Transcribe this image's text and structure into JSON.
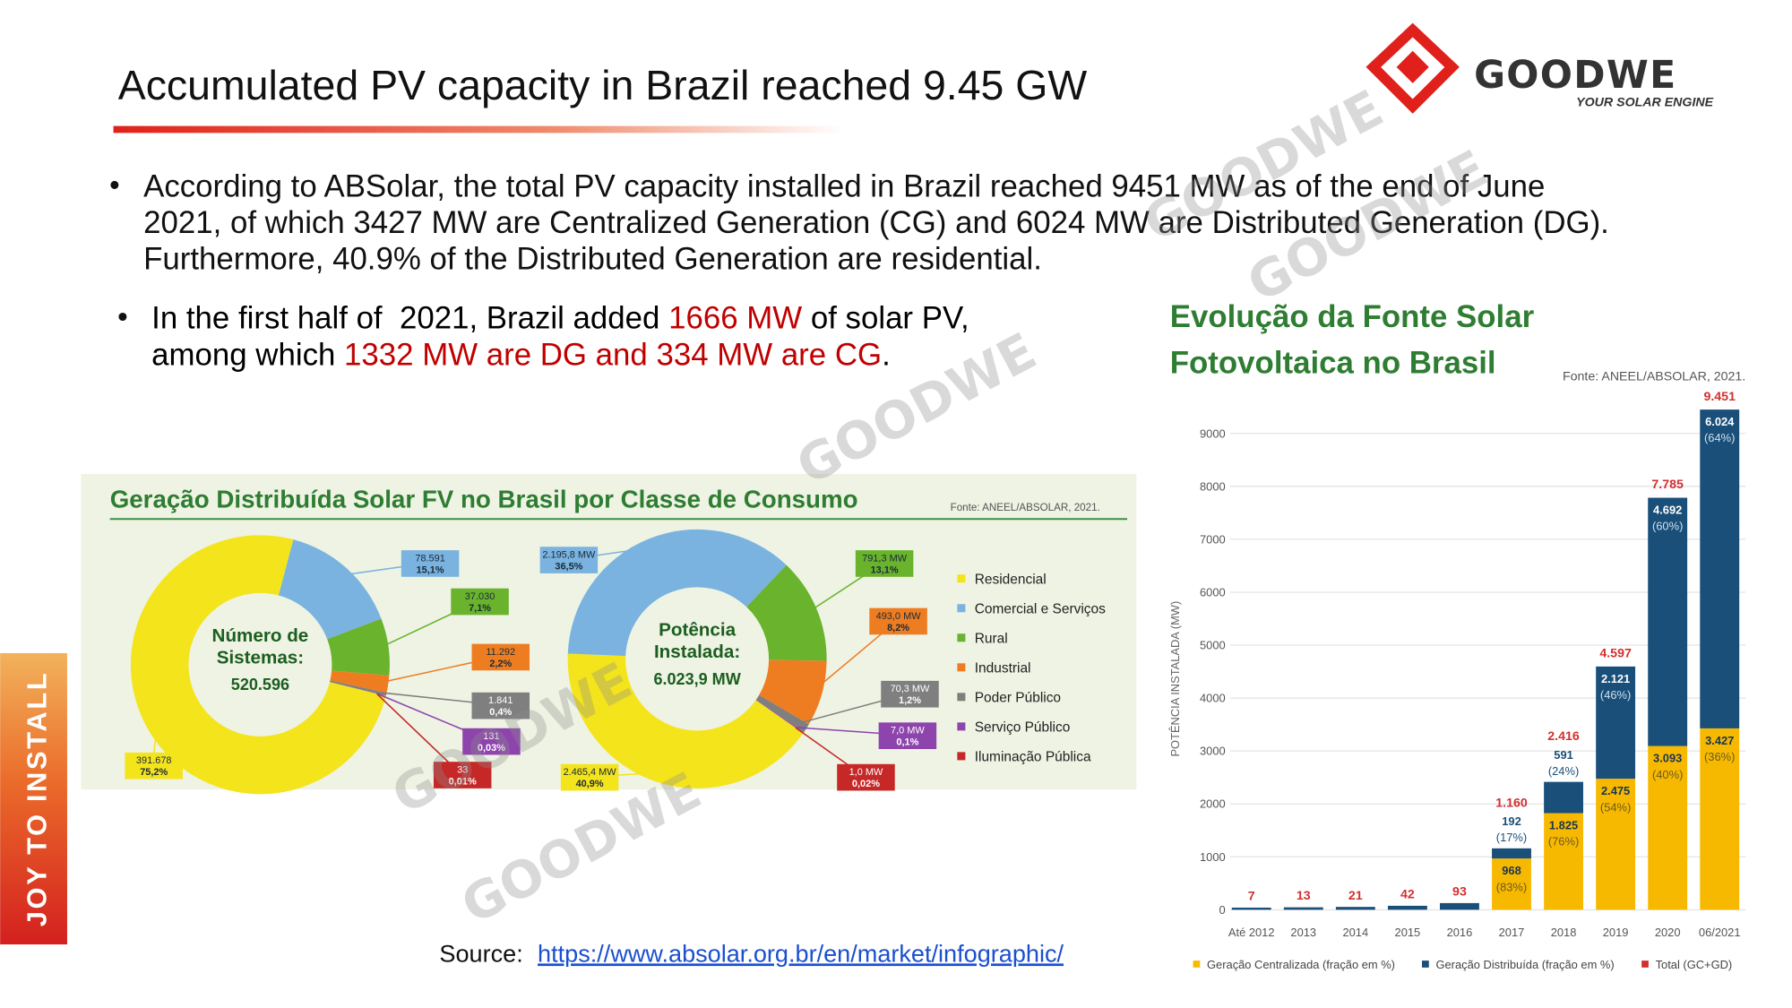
{
  "header": {
    "title": "Accumulated PV capacity in Brazil reached 9.45 GW",
    "logo": "GOODWE",
    "tagline": "YOUR SOLAR ENGINE"
  },
  "bullet_1": {
    "lines": [
      "According to ABSolar, the total PV capacity installed in Brazil reached 9451 MW as of the end of June",
      "2021, of which 3427 MW are Centralized Generation (CG) and 6024 MW are Distributed Generation (DG).",
      "Furthermore, 40.9% of the Distributed Generation are residential."
    ]
  },
  "bullet_2": {
    "lines": [
      [
        {
          "text": "In the first half of  2021, Brazil added ",
          "color": "#000000"
        },
        {
          "text": "1666 MW",
          "color": "#c00000"
        },
        {
          "text": " of solar PV,",
          "color": "#000000"
        }
      ],
      [
        {
          "text": "among which ",
          "color": "#000000"
        },
        {
          "text": "1332 MW are DG and 334 MW are CG",
          "color": "#c00000"
        },
        {
          "text": ".",
          "color": "#000000"
        }
      ]
    ]
  },
  "watermark": "GOODWE",
  "side_label": "JOY TO INSTALL",
  "source": {
    "label": "Source:",
    "link": "https://www.absolar.org.br/en/market/infographic/"
  },
  "chart_data": [
    {
      "type": "donut",
      "title": "Geração Distribuída Solar FV no Brasil por Classe de Consumo",
      "source": "Fonte: ANEEL/ABSOLAR, 2021.",
      "categories": [
        "Residencial",
        "Comercial e Serviços",
        "Rural",
        "Industrial",
        "Poder Público",
        "Serviço Público",
        "Iluminação Pública"
      ],
      "colors": [
        "#f4e41c",
        "#7ab3df",
        "#69b32d",
        "#ee7d22",
        "#7f7f7f",
        "#8e44ad",
        "#c62828"
      ],
      "series": [
        {
          "center_label": [
            "Número de",
            "Sistemas:"
          ],
          "total_label": "520.596",
          "values": [
            391678,
            78591,
            37030,
            11292,
            1841,
            131,
            33
          ],
          "value_labels": [
            "391.678",
            "78.591",
            "37.030",
            "11.292",
            "1.841",
            "131",
            "33"
          ],
          "percent_labels": [
            "75,2%",
            "15,1%",
            "7,1%",
            "2,2%",
            "0,4%",
            "0,03%",
            "0,01%"
          ]
        },
        {
          "center_label": [
            "Potência",
            "Instalada:"
          ],
          "total_label": "6.023,9 MW",
          "values": [
            2465.4,
            2195.8,
            791.3,
            493.0,
            70.3,
            7.0,
            1.0
          ],
          "value_labels": [
            "2.465,4 MW",
            "2.195,8 MW",
            "791,3 MW",
            "493,0 MW",
            "70,3 MW",
            "7,0 MW",
            "1,0 MW"
          ],
          "percent_labels": [
            "40,9%",
            "36,5%",
            "13,1%",
            "8,2%",
            "1,2%",
            "0,1%",
            "0,02%"
          ]
        }
      ]
    },
    {
      "type": "bar",
      "title": [
        "Evolução da Fonte Solar",
        "Fotovoltaica no Brasil"
      ],
      "source": "Fonte: ANEEL/ABSOLAR, 2021.",
      "ylabel": "POTÊNCIA INSTALADA (MW)",
      "categories": [
        "Até 2012",
        "2013",
        "2014",
        "2015",
        "2016",
        "2017",
        "2018",
        "2019",
        "2020",
        "06/2021"
      ],
      "ylim": [
        0,
        9600
      ],
      "yticks": [
        0,
        1000,
        2000,
        3000,
        4000,
        5000,
        6000,
        7000,
        8000,
        9000
      ],
      "grid": true,
      "series": [
        {
          "name": "Geração Centralizada (fração em %)",
          "color": "#f7b900",
          "stacked": true,
          "values": [
            null,
            null,
            null,
            null,
            null,
            968,
            1825,
            2475,
            3093,
            3427
          ],
          "value_labels": [
            null,
            null,
            null,
            null,
            null,
            "968",
            "1.825",
            "2.475",
            "3.093",
            "3.427"
          ],
          "percent_labels": [
            null,
            null,
            null,
            null,
            null,
            "(83%)",
            "(76%)",
            "(54%)",
            "(40%)",
            "(36%)"
          ]
        },
        {
          "name": "Geração Distribuída (fração em %)",
          "color": "#1a4f7a",
          "stacked": true,
          "values": [
            null,
            null,
            null,
            null,
            null,
            192,
            591,
            2121,
            4692,
            6024
          ],
          "value_labels": [
            null,
            null,
            null,
            null,
            null,
            "192",
            "591",
            "2.121",
            "4.692",
            "6.024"
          ],
          "percent_labels": [
            null,
            null,
            null,
            null,
            null,
            "(17%)",
            "(24%)",
            "(46%)",
            "(60%)",
            "(64%)"
          ]
        },
        {
          "name": "Total (GC+GD)",
          "color": "#d32f2f",
          "stacked": false,
          "values": [
            7,
            13,
            21,
            42,
            93,
            1160,
            2416,
            4597,
            7785,
            9451
          ],
          "value_labels": [
            "7",
            "13",
            "21",
            "42",
            "93",
            "1.160",
            "2.416",
            "4.597",
            "7.785",
            "9.451"
          ]
        }
      ]
    }
  ]
}
